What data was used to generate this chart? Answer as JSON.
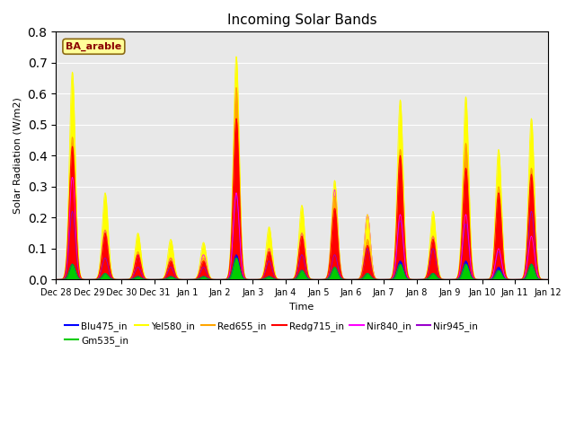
{
  "title": "Incoming Solar Bands",
  "xlabel": "Time",
  "ylabel": "Solar Radiation (W/m2)",
  "ylim": [
    0,
    0.8
  ],
  "yticks": [
    0.0,
    0.1,
    0.2,
    0.3,
    0.4,
    0.5,
    0.6,
    0.7,
    0.8
  ],
  "bg_color": "#e8e8e8",
  "annotation_text": "BA_arable",
  "annotation_color": "#8B0000",
  "annotation_bg": "#FFFF99",
  "series_colors": {
    "Blu475_in": "#0000FF",
    "Gm535_in": "#00CC00",
    "Yel580_in": "#FFFF00",
    "Red655_in": "#FFA500",
    "Redg715_in": "#FF0000",
    "Nir840_in": "#FF00FF",
    "Nir945_in": "#9900CC"
  },
  "xtick_labels": [
    "Dec 28",
    "Dec 29",
    "Dec 30",
    "Dec 31",
    "Jan 1",
    "Jan 2",
    "Jan 3",
    "Jan 4",
    "Jan 5",
    "Jan 6",
    "Jan 7",
    "Jan 8",
    "Jan 9",
    "Jan 10",
    "Jan 11",
    "Jan 12"
  ],
  "n_days": 15,
  "n_points_per_day": 288,
  "peak_sigma": 0.09,
  "yel_peaks": [
    0.67,
    0.28,
    0.15,
    0.13,
    0.12,
    0.72,
    0.17,
    0.24,
    0.32,
    0.21,
    0.58,
    0.22,
    0.59,
    0.42,
    0.52
  ],
  "red_peaks": [
    0.46,
    0.16,
    0.09,
    0.07,
    0.07,
    0.62,
    0.1,
    0.15,
    0.27,
    0.13,
    0.42,
    0.14,
    0.44,
    0.3,
    0.36
  ],
  "redg_peaks": [
    0.43,
    0.15,
    0.08,
    0.06,
    0.06,
    0.52,
    0.09,
    0.14,
    0.23,
    0.11,
    0.4,
    0.13,
    0.36,
    0.28,
    0.34
  ],
  "nir840_peaks": [
    0.33,
    0.16,
    0.08,
    0.07,
    0.08,
    0.28,
    0.1,
    0.15,
    0.29,
    0.21,
    0.21,
    0.14,
    0.21,
    0.1,
    0.14
  ],
  "nir945_peaks": [
    0.22,
    0.07,
    0.04,
    0.04,
    0.04,
    0.27,
    0.06,
    0.08,
    0.08,
    0.1,
    0.19,
    0.1,
    0.18,
    0.09,
    0.22
  ],
  "blu_peaks": [
    0.05,
    0.02,
    0.01,
    0.01,
    0.01,
    0.08,
    0.01,
    0.03,
    0.04,
    0.02,
    0.06,
    0.02,
    0.06,
    0.04,
    0.05
  ],
  "gm_peaks": [
    0.05,
    0.02,
    0.01,
    0.01,
    0.01,
    0.07,
    0.01,
    0.03,
    0.04,
    0.02,
    0.05,
    0.02,
    0.05,
    0.03,
    0.05
  ]
}
